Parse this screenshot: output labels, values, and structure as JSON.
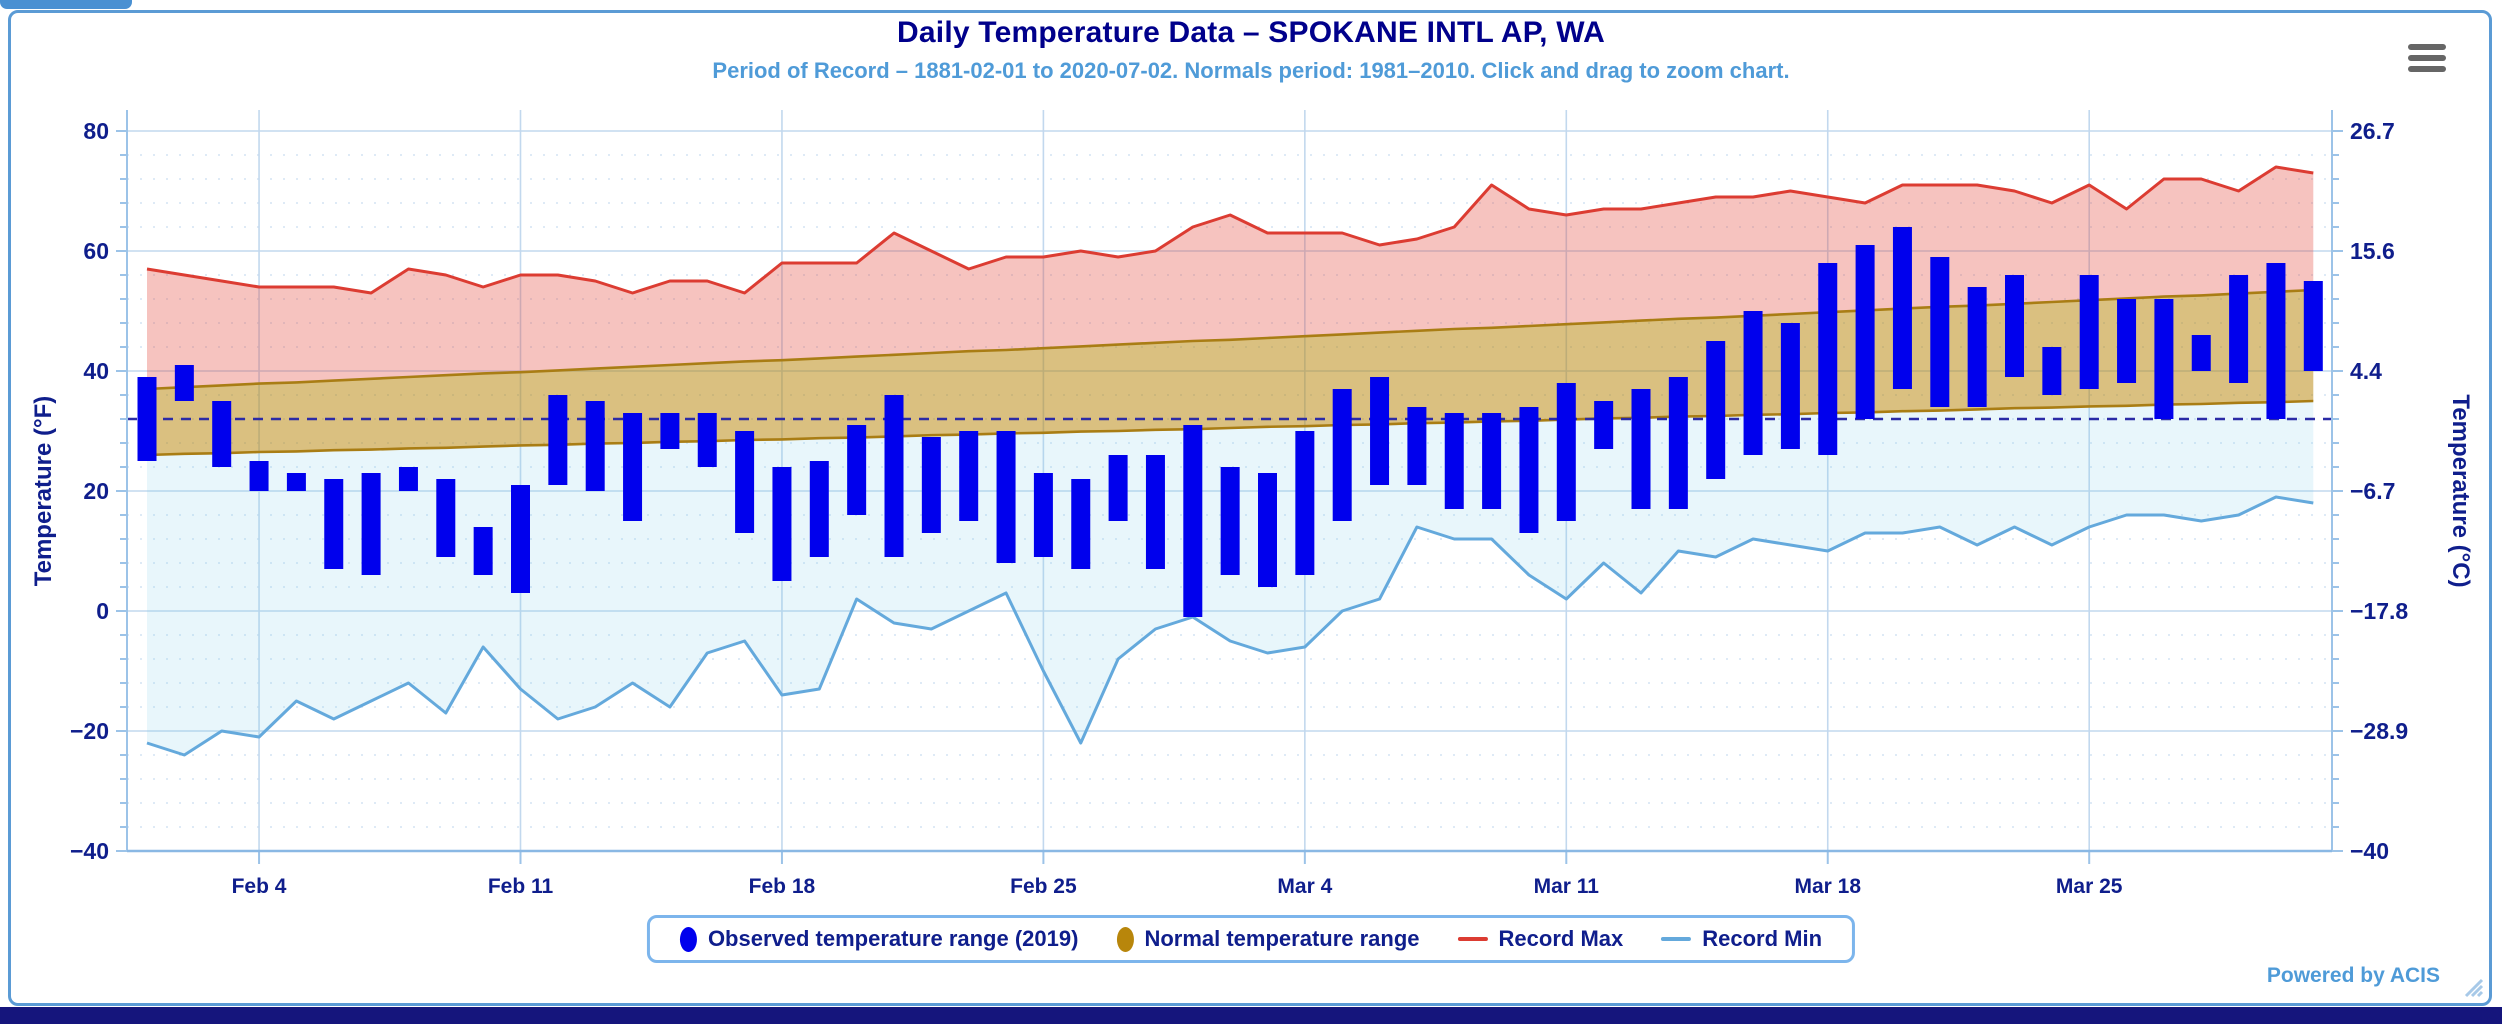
{
  "header": {
    "title": "Daily Temperature Data – SPOKANE INTL AP, WA",
    "subtitle": "Period of Record – 1881-02-01 to 2020-07-02. Normals period: 1981–2010. Click and drag to zoom chart."
  },
  "footer": {
    "powered_by": "Powered by ACIS"
  },
  "menu": {
    "icon": "hamburger-icon"
  },
  "chart_data": {
    "type": "combo",
    "series_types": {
      "observed": "columnrange",
      "normal": "arearange",
      "record_max": "line",
      "record_min": "line"
    },
    "title": "Daily Temperature Data – SPOKANE INTL AP, WA",
    "subtitle": "Period of Record – 1881-02-01 to 2020-07-02. Normals period: 1981–2010. Click and drag to zoom chart.",
    "year_observed": "2019",
    "freezing_line_f": 32,
    "grid": "on",
    "legend_position": "bottom-center",
    "x": {
      "dates": [
        "Feb 1",
        "Feb 2",
        "Feb 3",
        "Feb 4",
        "Feb 5",
        "Feb 6",
        "Feb 7",
        "Feb 8",
        "Feb 9",
        "Feb 10",
        "Feb 11",
        "Feb 12",
        "Feb 13",
        "Feb 14",
        "Feb 15",
        "Feb 16",
        "Feb 17",
        "Feb 18",
        "Feb 19",
        "Feb 20",
        "Feb 21",
        "Feb 22",
        "Feb 23",
        "Feb 24",
        "Feb 25",
        "Feb 26",
        "Feb 27",
        "Feb 28",
        "Mar 1",
        "Mar 2",
        "Mar 3",
        "Mar 4",
        "Mar 5",
        "Mar 6",
        "Mar 7",
        "Mar 8",
        "Mar 9",
        "Mar 10",
        "Mar 11",
        "Mar 12",
        "Mar 13",
        "Mar 14",
        "Mar 15",
        "Mar 16",
        "Mar 17",
        "Mar 18",
        "Mar 19",
        "Mar 20",
        "Mar 21",
        "Mar 22",
        "Mar 23",
        "Mar 24",
        "Mar 25",
        "Mar 26",
        "Mar 27",
        "Mar 28",
        "Mar 29",
        "Mar 30",
        "Mar 31"
      ],
      "tick_labels": [
        "Feb 4",
        "Feb 11",
        "Feb 18",
        "Feb 25",
        "Mar 4",
        "Mar 11",
        "Mar 18",
        "Mar 25"
      ],
      "tick_day_indices": [
        3,
        10,
        17,
        24,
        31,
        38,
        45,
        52
      ]
    },
    "y_left": {
      "title": "Temperature (°F)",
      "ticks": [
        80,
        60,
        40,
        20,
        0,
        -20,
        -40
      ],
      "range": [
        -40,
        80
      ],
      "minor_step": 4
    },
    "y_right": {
      "title": "Temperature (°C)",
      "tick_labels": [
        "26.7",
        "15.6",
        "4.4",
        "−6.7",
        "−17.8",
        "−28.9",
        "−40"
      ]
    },
    "series": {
      "observed_low": [
        25,
        35,
        24,
        20,
        20,
        7,
        6,
        20,
        9,
        6,
        3,
        21,
        20,
        15,
        27,
        24,
        13,
        5,
        9,
        16,
        9,
        13,
        15,
        8,
        9,
        7,
        15,
        7,
        -1,
        6,
        4,
        6,
        15,
        21,
        21,
        17,
        17,
        13,
        15,
        27,
        17,
        17,
        22,
        26,
        27,
        26,
        32,
        37,
        34,
        34,
        39,
        36,
        37,
        38,
        32,
        40,
        38,
        32,
        40
      ],
      "observed_high": [
        39,
        41,
        35,
        25,
        23,
        22,
        23,
        24,
        22,
        14,
        21,
        36,
        35,
        33,
        33,
        33,
        30,
        24,
        25,
        31,
        36,
        29,
        30,
        30,
        23,
        22,
        26,
        26,
        31,
        24,
        23,
        30,
        37,
        39,
        34,
        33,
        33,
        34,
        38,
        35,
        37,
        39,
        45,
        50,
        48,
        58,
        61,
        64,
        59,
        54,
        56,
        44,
        56,
        52,
        52,
        46,
        56,
        58,
        55
      ],
      "normal_low": [
        26.0,
        26.2,
        26.3,
        26.5,
        26.6,
        26.8,
        26.9,
        27.1,
        27.2,
        27.4,
        27.6,
        27.7,
        27.9,
        28.0,
        28.2,
        28.3,
        28.5,
        28.6,
        28.8,
        28.9,
        29.1,
        29.3,
        29.4,
        29.6,
        29.7,
        29.9,
        30.0,
        30.2,
        30.3,
        30.5,
        30.7,
        30.8,
        31.0,
        31.1,
        31.3,
        31.4,
        31.6,
        31.7,
        31.9,
        32.1,
        32.2,
        32.4,
        32.5,
        32.7,
        32.8,
        33.0,
        33.1,
        33.3,
        33.4,
        33.6,
        33.8,
        33.9,
        34.1,
        34.2,
        34.4,
        34.5,
        34.7,
        34.8,
        35.0
      ],
      "normal_high": [
        37.0,
        37.3,
        37.6,
        37.9,
        38.1,
        38.4,
        38.7,
        39.0,
        39.3,
        39.6,
        39.8,
        40.1,
        40.4,
        40.7,
        41.0,
        41.3,
        41.6,
        41.8,
        42.1,
        42.4,
        42.7,
        43.0,
        43.3,
        43.5,
        43.8,
        44.1,
        44.4,
        44.7,
        45.0,
        45.2,
        45.5,
        45.8,
        46.1,
        46.4,
        46.7,
        47.0,
        47.2,
        47.5,
        47.8,
        48.1,
        48.4,
        48.7,
        48.9,
        49.2,
        49.5,
        49.8,
        50.1,
        50.4,
        50.7,
        50.9,
        51.2,
        51.5,
        51.8,
        52.1,
        52.4,
        52.6,
        52.9,
        53.2,
        53.5
      ],
      "record_max": [
        57,
        56,
        55,
        54,
        54,
        54,
        53,
        57,
        56,
        54,
        56,
        56,
        55,
        53,
        55,
        55,
        53,
        58,
        58,
        58,
        63,
        60,
        57,
        59,
        59,
        60,
        59,
        60,
        64,
        66,
        63,
        63,
        63,
        61,
        62,
        64,
        71,
        67,
        66,
        67,
        67,
        68,
        69,
        69,
        70,
        69,
        68,
        71,
        71,
        71,
        70,
        68,
        71,
        67,
        72,
        72,
        70,
        74,
        73
      ],
      "record_min": [
        -22,
        -24,
        -20,
        -21,
        -15,
        -18,
        -15,
        -12,
        -17,
        -6,
        -13,
        -18,
        -16,
        -12,
        -16,
        -7,
        -5,
        -14,
        -13,
        2,
        -2,
        -3,
        0,
        3,
        -10,
        -22,
        -8,
        -3,
        -1,
        -5,
        -7,
        -6,
        0,
        2,
        14,
        12,
        12,
        6,
        2,
        8,
        3,
        10,
        9,
        12,
        11,
        10,
        13,
        13,
        14,
        11,
        14,
        11,
        14,
        16,
        16,
        15,
        16,
        19,
        18
      ]
    },
    "colors": {
      "observed": "#0000ed",
      "normal_fill": "rgba(184,134,11,0.52)",
      "normal_edge": "#a97d14",
      "record_max": "#dc3c32",
      "record_max_fill": "rgba(227,72,62,0.33)",
      "record_min": "#64a9dc",
      "record_min_fill": "rgba(125,205,235,0.18)",
      "freezing_line": "#2b2ba6",
      "gridline": "#c2d8ee",
      "axis": "#9cc3e8",
      "label": "#0f1e8c"
    },
    "legend": [
      {
        "label": "Observed temperature range (2019)",
        "marker": "ellipse",
        "color": "#0000ed"
      },
      {
        "label": "Normal temperature range",
        "marker": "ellipse",
        "color": "#b8860b"
      },
      {
        "label": "Record Max",
        "marker": "line",
        "color": "#dc3c32"
      },
      {
        "label": "Record Min",
        "marker": "line",
        "color": "#64a9dc"
      }
    ]
  }
}
